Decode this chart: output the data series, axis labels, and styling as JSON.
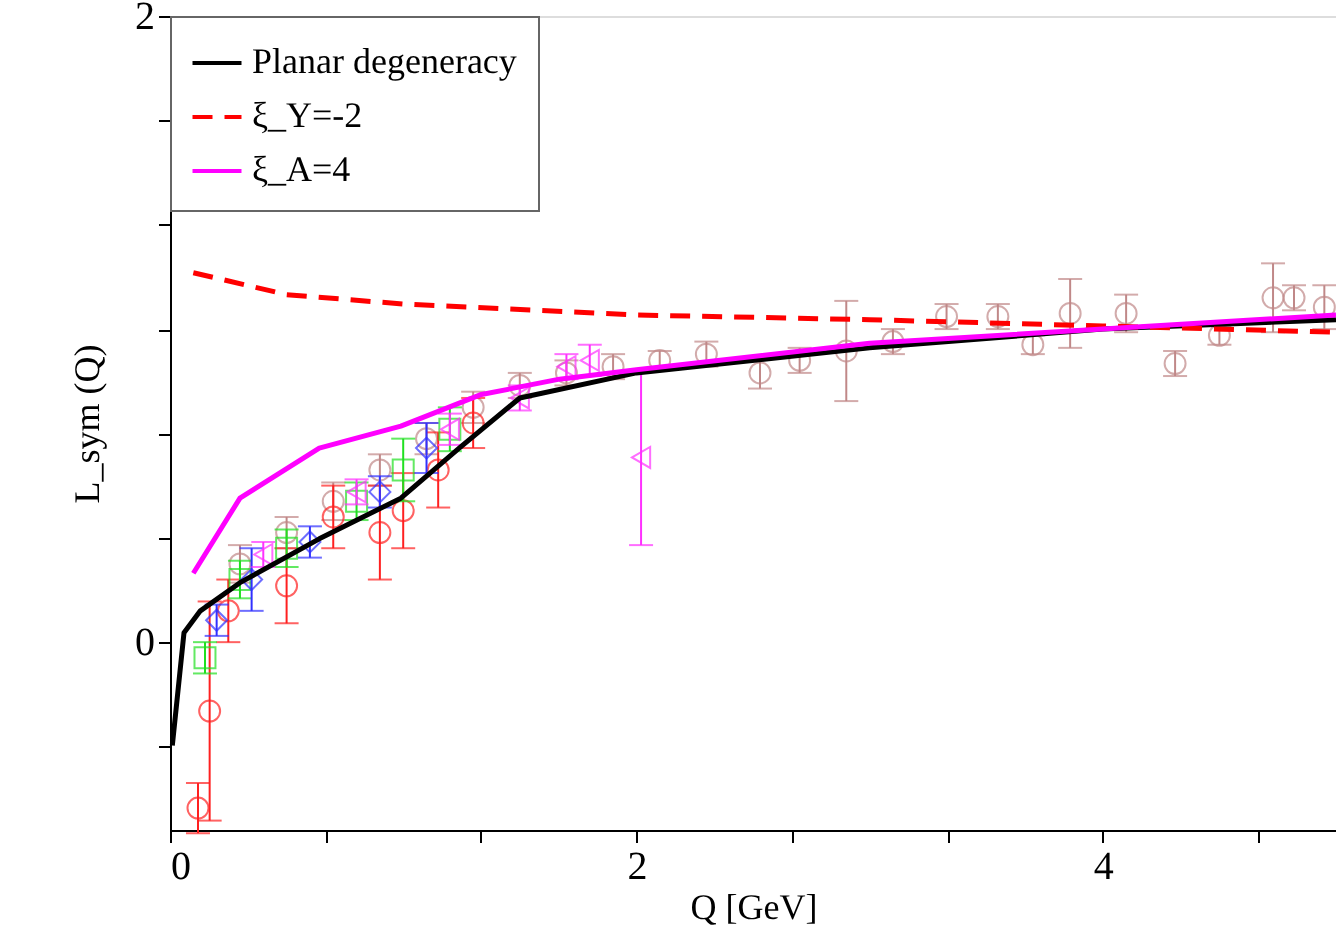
{
  "chart_data": {
    "type": "line",
    "xlabel": "Q [GeV]",
    "ylabel": "L_sym (Q)",
    "xlim": [
      0,
      5
    ],
    "ylim": [
      -0.6,
      2
    ],
    "xticks": [
      0,
      {
        "value": 0.6667,
        "label": null
      },
      {
        "value": 1.3333,
        "label": null
      },
      2,
      {
        "value": 2.6667,
        "label": null
      },
      {
        "value": 3.3333,
        "label": null
      },
      4,
      {
        "value": 4.6667,
        "label": null
      }
    ],
    "yticks": [
      {
        "value": -0.3333,
        "label": null
      },
      0,
      {
        "value": 0.3333,
        "label": null
      },
      {
        "value": 0.6667,
        "label": null
      },
      {
        "value": 1,
        "label": null
      },
      {
        "value": 1.3333,
        "label": null
      },
      {
        "value": 1.6667,
        "label": null
      },
      2
    ],
    "grid": false,
    "legend": "top left",
    "series": [
      {
        "type": "scatter",
        "marker": "circle",
        "color": "#c08888",
        "x": [
          0.3,
          0.5,
          0.7,
          0.9,
          1.1,
          1.3,
          1.5,
          1.7,
          1.9,
          2.1,
          2.3,
          2.53,
          2.7,
          2.9,
          3.1,
          3.33,
          3.55,
          3.7,
          3.86,
          4.1,
          4.31,
          4.5,
          4.73,
          4.82,
          4.95
        ],
        "values": [
          0.25,
          0.35,
          0.45,
          0.55,
          0.65,
          0.75,
          0.82,
          0.86,
          0.88,
          0.9,
          0.92,
          0.86,
          0.9,
          0.93,
          0.96,
          1.04,
          1.04,
          0.95,
          1.05,
          1.05,
          0.89,
          0.98,
          1.1,
          1.1,
          1.07
        ],
        "errors": [
          0.06,
          0.05,
          0.06,
          0.05,
          0.05,
          0.05,
          0.04,
          0.04,
          0.04,
          0.03,
          0.04,
          0.05,
          0.04,
          0.16,
          0.04,
          0.04,
          0.04,
          0.03,
          0.11,
          0.06,
          0.04,
          0.03,
          0.11,
          0.04,
          0.07
        ]
      },
      {
        "type": "scatter",
        "marker": "circle",
        "color": "#ff2020",
        "x": [
          0.12,
          0.17,
          0.25,
          0.5,
          0.7,
          0.9,
          1.0,
          1.15,
          1.3
        ],
        "values": [
          -0.53,
          -0.22,
          0.1,
          0.18,
          0.4,
          0.35,
          0.42,
          0.55,
          0.7
        ],
        "errors": [
          0.08,
          0.35,
          0.1,
          0.12,
          0.1,
          0.15,
          0.12,
          0.12,
          0.08
        ]
      },
      {
        "type": "scatter",
        "marker": "square",
        "color": "#20e020",
        "x": [
          0.15,
          0.3,
          0.5,
          0.8,
          1.0,
          1.2
        ],
        "values": [
          -0.05,
          0.2,
          0.3,
          0.45,
          0.55,
          0.68
        ],
        "errors": [
          0.05,
          0.06,
          0.06,
          0.06,
          0.1,
          0.07
        ]
      },
      {
        "type": "scatter",
        "marker": "diamond",
        "color": "#3030ff",
        "x": [
          0.2,
          0.35,
          0.6,
          0.9,
          1.1
        ],
        "values": [
          0.07,
          0.2,
          0.32,
          0.48,
          0.62
        ],
        "errors": [
          0.05,
          0.1,
          0.05,
          0.05,
          0.08
        ]
      },
      {
        "type": "scatter",
        "marker": "triangle",
        "color": "#ff30ff",
        "x": [
          0.4,
          0.8,
          1.2,
          1.5,
          1.7,
          1.8,
          2.02
        ],
        "values": [
          0.28,
          0.48,
          0.68,
          0.78,
          0.88,
          0.9,
          0.59
        ],
        "errors": [
          0.04,
          0.04,
          0.05,
          0.04,
          0.04,
          0.05,
          0.28
        ]
      },
      {
        "name": "Planar degeneracy",
        "line_style": "solid",
        "color": "#000000",
        "x": [
          0.01,
          0.06,
          0.13,
          0.3,
          0.64,
          0.99,
          1.24,
          1.5,
          2,
          3,
          4,
          5
        ],
        "values": [
          -0.33,
          0.03,
          0.1,
          0.19,
          0.33,
          0.46,
          0.62,
          0.78,
          0.86,
          0.94,
          1.0,
          1.03
        ]
      },
      {
        "name": "ξ_Y=-2",
        "line_style": "dashed",
        "color": "#ff0000",
        "x": [
          0.1,
          0.5,
          1,
          2,
          3,
          4,
          5
        ],
        "values": [
          1.18,
          1.11,
          1.08,
          1.045,
          1.03,
          1.01,
          0.99
        ]
      },
      {
        "name": "ξ_A=4",
        "line_style": "solid",
        "color": "#ff00ff",
        "x": [
          0.1,
          0.3,
          0.64,
          0.99,
          1.33,
          1.67,
          2,
          3,
          4,
          5
        ],
        "values": [
          0.22,
          0.46,
          0.62,
          0.69,
          0.79,
          0.84,
          0.87,
          0.955,
          1.0,
          1.045
        ]
      }
    ]
  }
}
